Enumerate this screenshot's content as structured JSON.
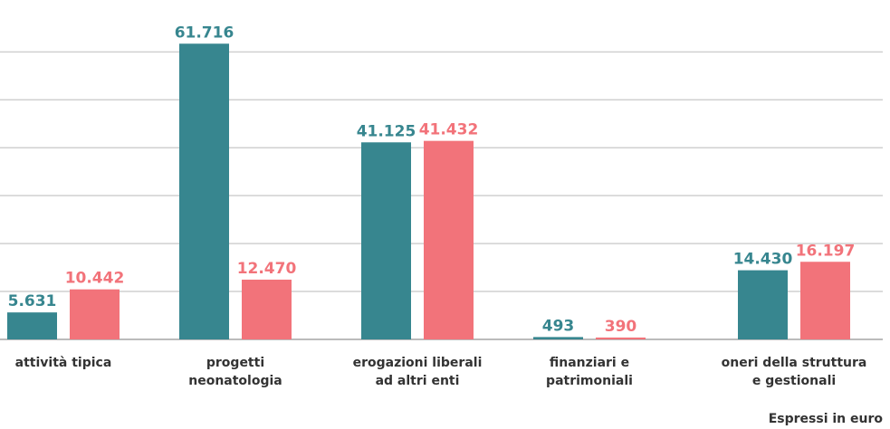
{
  "chart_data": {
    "type": "bar",
    "categories": [
      [
        "attività tipica"
      ],
      [
        "progetti",
        "neonatologia"
      ],
      [
        "erogazioni liberali",
        "ad altri enti"
      ],
      [
        "finanziari e",
        "patrimoniali"
      ],
      [
        "oneri della struttura",
        "e gestionali"
      ]
    ],
    "series": [
      {
        "color": "#37868f",
        "values": [
          5631,
          61716,
          41125,
          493,
          14430
        ],
        "value_labels": [
          "5.631",
          "61.716",
          "41.125",
          "493",
          "14.430"
        ]
      },
      {
        "color": "#f2737a",
        "values": [
          10442,
          12470,
          41432,
          390,
          16197
        ],
        "value_labels": [
          "10.442",
          "12.470",
          "41.432",
          "390",
          "16.197"
        ]
      }
    ],
    "ylim": [
      0,
      68000
    ],
    "yticks": [
      0,
      10000,
      20000,
      30000,
      40000,
      50000,
      60000
    ],
    "grid": true,
    "note": "Espressi in euro"
  }
}
